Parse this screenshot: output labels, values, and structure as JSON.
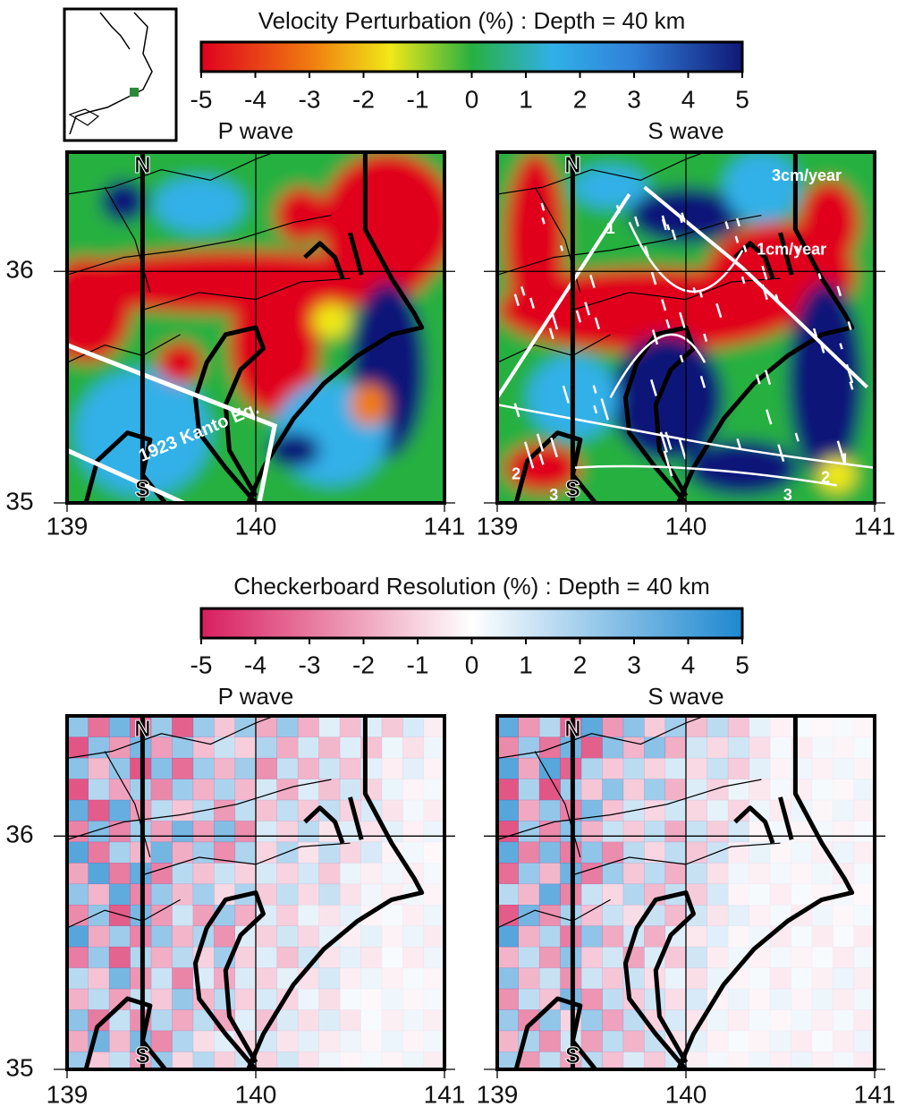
{
  "rows": [
    {
      "colorbar": {
        "title": "Velocity Perturbation (%) : Depth = 40 km",
        "ticks": [
          -5,
          -4,
          -3,
          -2,
          -1,
          0,
          1,
          2,
          3,
          4,
          5
        ]
      },
      "maps": [
        {
          "title": "P wave",
          "xticks": [
            139,
            140,
            141
          ],
          "yticks": [
            35,
            36
          ],
          "north": "N",
          "south": "S",
          "annotations": [
            "1923 Kanto Eq."
          ]
        },
        {
          "title": "S wave",
          "xticks": [
            139,
            140,
            141
          ],
          "north": "N",
          "south": "S",
          "annotations": [
            "3cm/year",
            "1cm/year",
            "1",
            "1",
            "2",
            "3",
            "2",
            "3"
          ]
        }
      ]
    },
    {
      "colorbar": {
        "title": "Checkerboard Resolution (%) : Depth = 40 km",
        "ticks": [
          -5,
          -4,
          -3,
          -2,
          -1,
          0,
          1,
          2,
          3,
          4,
          5
        ]
      },
      "maps": [
        {
          "title": "P wave",
          "xticks": [
            139,
            140,
            141
          ],
          "yticks": [
            35,
            36
          ],
          "north": "N",
          "south": "S"
        },
        {
          "title": "S wave",
          "xticks": [
            139,
            140,
            141
          ],
          "north": "N",
          "south": "S"
        }
      ]
    }
  ]
}
